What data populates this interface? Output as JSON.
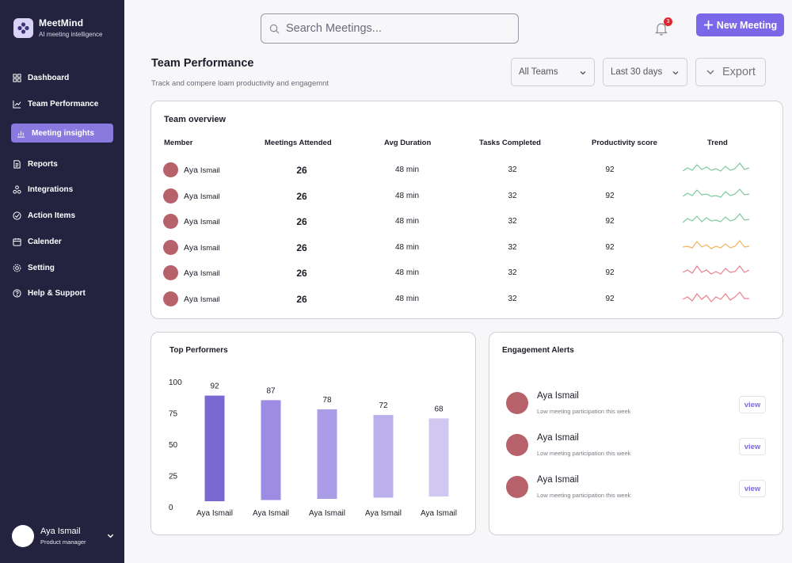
{
  "app": {
    "name": "MeetMind",
    "tagline": "AI meeting intelligence"
  },
  "colors": {
    "sidebar_bg": "#232340",
    "accent": "#7b68e8",
    "active_nav": "#8a7adf",
    "avatar": "#b7616b",
    "badge": "#e0242b"
  },
  "sidebar": {
    "items": [
      {
        "label": "Dashboard",
        "icon": "grid-icon",
        "active": false
      },
      {
        "label": "Team Performance",
        "icon": "chart-line-icon",
        "active": false
      },
      {
        "label": "Meeting insights",
        "icon": "bar-chart-icon",
        "active": true
      },
      {
        "label": "Reports",
        "icon": "document-icon",
        "active": false
      },
      {
        "label": "Integrations",
        "icon": "integrations-icon",
        "active": false
      },
      {
        "label": "Action Items",
        "icon": "check-circle-icon",
        "active": false
      },
      {
        "label": "Calender",
        "icon": "calendar-icon",
        "active": false
      },
      {
        "label": "Setting",
        "icon": "gear-icon",
        "active": false
      },
      {
        "label": "Help & Support",
        "icon": "help-icon",
        "active": false
      }
    ],
    "user": {
      "name": "Aya Ismail",
      "role": "Product manager"
    }
  },
  "topbar": {
    "search_placeholder": "Search Meetings...",
    "notification_count": "3",
    "new_meeting_label": "New Meeting"
  },
  "header": {
    "title": "Team Performance",
    "subtitle": "Track and compere loam productivity and engagemnt",
    "team_filter": "All Teams",
    "date_filter": "Last 30 days",
    "export_label": "Export"
  },
  "overview": {
    "title": "Team overview",
    "columns": [
      "Member",
      "Meetings Attended",
      "Avg Duration",
      "Tasks Completed",
      "Productivity score",
      "Trend"
    ],
    "rows": [
      {
        "first": "Aya",
        "last": "Ismail",
        "meetings": "26",
        "duration": "48 min",
        "tasks": "32",
        "score": "92",
        "trend_color": "#7fc9a0"
      },
      {
        "first": "Aya",
        "last": "Ismail",
        "meetings": "26",
        "duration": "48 min",
        "tasks": "32",
        "score": "92",
        "trend_color": "#7fc9a0"
      },
      {
        "first": "Aya",
        "last": "Ismail",
        "meetings": "26",
        "duration": "48 min",
        "tasks": "32",
        "score": "92",
        "trend_color": "#7fc9a0"
      },
      {
        "first": "Aya",
        "last": "Ismail",
        "meetings": "26",
        "duration": "48 min",
        "tasks": "32",
        "score": "92",
        "trend_color": "#f2b25e"
      },
      {
        "first": "Aya",
        "last": "Ismail",
        "meetings": "26",
        "duration": "48 min",
        "tasks": "32",
        "score": "92",
        "trend_color": "#e9808c"
      },
      {
        "first": "Aya",
        "last": "Ismail",
        "meetings": "26",
        "duration": "48 min",
        "tasks": "32",
        "score": "92",
        "trend_color": "#e9808c"
      }
    ]
  },
  "top_performers": {
    "title": "Top Performers"
  },
  "chart_data": {
    "type": "bar",
    "categories": [
      "Aya Ismail",
      "Aya Ismail",
      "Aya Ismail",
      "Aya Ismail",
      "Aya Ismail"
    ],
    "values": [
      92,
      87,
      78,
      72,
      68
    ],
    "y_ticks": [
      100,
      75,
      50,
      25,
      0
    ],
    "ylim": [
      0,
      100
    ],
    "bar_colors": [
      "#7b68d2",
      "#9d8be4",
      "#ab9ce8",
      "#bbb0ec",
      "#d1c8f2"
    ],
    "grid": false,
    "legend": "none",
    "title": "Top Performers",
    "xlabel": "",
    "ylabel": ""
  },
  "alerts": {
    "title": "Engagement Alerts",
    "items": [
      {
        "name": "Aya Ismail",
        "desc": "Low meeting participation this week",
        "action": "view"
      },
      {
        "name": "Aya Ismail",
        "desc": "Low meeting participation this week",
        "action": "view"
      },
      {
        "name": "Aya Ismail",
        "desc": "Low meeting participation this week",
        "action": "view"
      }
    ]
  }
}
